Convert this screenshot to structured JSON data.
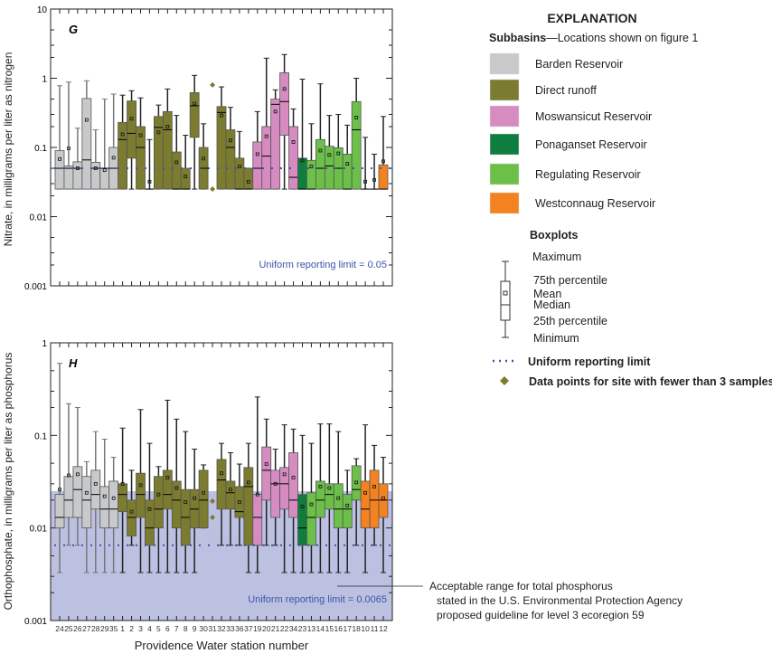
{
  "chart_data": {
    "type": "boxplot",
    "xlabel": "Providence Water station number",
    "stations": [
      "24",
      "25",
      "26",
      "27",
      "28",
      "29",
      "35",
      "1",
      "2",
      "3",
      "4",
      "5",
      "6",
      "7",
      "8",
      "9",
      "30",
      "31",
      "32",
      "33",
      "36",
      "37",
      "19",
      "20",
      "21",
      "22",
      "34",
      "23",
      "13",
      "14",
      "15",
      "16",
      "17",
      "18",
      "10",
      "11",
      "12"
    ],
    "station_groups": [
      "Barden",
      "Barden",
      "Barden",
      "Barden",
      "Barden",
      "Barden",
      "Barden",
      "Direct",
      "Direct",
      "Direct",
      "Direct",
      "Direct",
      "Direct",
      "Direct",
      "Direct",
      "Direct",
      "Direct",
      "Direct",
      "Direct",
      "Direct",
      "Direct",
      "Direct",
      "Moswansicut",
      "Moswansicut",
      "Moswansicut",
      "Moswansicut",
      "Moswansicut",
      "Ponaganset",
      "Regulating",
      "Regulating",
      "Regulating",
      "Regulating",
      "Regulating",
      "Regulating",
      "Westconnaug",
      "Westconnaug",
      "Westconnaug"
    ],
    "group_colors": {
      "Barden": "#c8c9cb",
      "Direct": "#7c7c30",
      "Moswansicut": "#d68cc0",
      "Ponaganset": "#0f7d3e",
      "Regulating": "#6cc04a",
      "Westconnaug": "#f58220"
    },
    "stat_order": [
      "min",
      "q1",
      "median",
      "q3",
      "max",
      "mean"
    ],
    "panels": [
      {
        "label": "G",
        "ylabel": "Nitrate, in milligrams per liter as nitrogen",
        "ylim": [
          0.001,
          10
        ],
        "yticks": [
          "10",
          "1",
          "0.1",
          "0.01",
          "0.001"
        ],
        "reporting_limit": 0.05,
        "reporting_label": "Uniform reporting limit = 0.05",
        "boxes": [
          [
            0.025,
            0.025,
            0.05,
            0.09,
            0.78,
            0.068
          ],
          [
            0.025,
            0.025,
            0.05,
            0.054,
            0.88,
            0.097
          ],
          [
            0.025,
            0.025,
            0.05,
            0.062,
            0.19,
            0.05
          ],
          [
            0.025,
            0.025,
            0.066,
            0.51,
            0.92,
            0.25
          ],
          [
            0.025,
            0.025,
            0.05,
            0.061,
            0.18,
            0.05
          ],
          [
            0.025,
            0.025,
            0.05,
            0.05,
            0.5,
            0.047
          ],
          [
            0.025,
            0.025,
            0.05,
            0.1,
            0.59,
            0.071
          ],
          [
            0.025,
            0.025,
            0.13,
            0.23,
            0.57,
            0.155
          ],
          [
            0.025,
            0.07,
            0.16,
            0.47,
            0.66,
            0.26
          ],
          [
            0.025,
            0.025,
            0.1,
            0.2,
            0.52,
            0.15
          ],
          [
            0.025,
            0.025,
            0.025,
            0.025,
            0.13,
            0.032
          ],
          [
            0.025,
            0.025,
            0.195,
            0.28,
            0.41,
            0.165
          ],
          [
            0.025,
            0.025,
            0.18,
            0.33,
            0.7,
            0.2
          ],
          [
            0.025,
            0.025,
            0.025,
            0.086,
            0.29,
            0.061
          ],
          [
            0.025,
            0.025,
            0.025,
            0.05,
            0.15,
            0.038
          ],
          [
            0.025,
            0.14,
            0.4,
            0.62,
            1.1,
            0.43
          ],
          [
            0.025,
            0.025,
            0.05,
            0.1,
            0.22,
            0.069
          ],
          null,
          [
            0.025,
            0.025,
            0.32,
            0.39,
            0.75,
            0.29
          ],
          [
            0.025,
            0.025,
            0.1,
            0.18,
            0.38,
            0.126
          ],
          [
            0.025,
            0.025,
            0.025,
            0.07,
            0.17,
            0.053
          ],
          [
            0.025,
            0.025,
            0.025,
            0.05,
            0.05,
            0.032
          ],
          [
            0.025,
            0.025,
            0.05,
            0.12,
            0.33,
            0.08
          ],
          [
            0.025,
            0.025,
            0.075,
            0.2,
            1.95,
            0.145
          ],
          [
            0.025,
            0.025,
            0.42,
            0.5,
            0.68,
            0.33
          ],
          [
            0.025,
            0.15,
            0.46,
            1.2,
            2.2,
            0.7
          ],
          [
            0.025,
            0.025,
            0.037,
            0.2,
            0.36,
            0.12
          ],
          [
            0.025,
            0.025,
            0.025,
            0.07,
            0.97,
            0.065
          ],
          [
            0.025,
            0.025,
            0.025,
            0.065,
            0.22,
            0.053
          ],
          [
            0.025,
            0.025,
            0.05,
            0.13,
            0.83,
            0.09
          ],
          [
            0.025,
            0.025,
            0.054,
            0.104,
            0.29,
            0.078
          ],
          [
            0.025,
            0.025,
            0.05,
            0.099,
            0.3,
            0.082
          ],
          [
            0.025,
            0.025,
            0.025,
            0.08,
            0.21,
            0.058
          ],
          [
            0.025,
            0.025,
            0.18,
            0.46,
            1.0,
            0.27
          ],
          [
            0.025,
            0.025,
            0.025,
            0.025,
            0.14,
            0.032
          ],
          [
            0.025,
            0.025,
            0.025,
            0.025,
            0.08,
            0.034
          ],
          [
            0.025,
            0.025,
            0.025,
            0.056,
            0.28,
            0.063
          ]
        ],
        "points": [
          {
            "station": "31",
            "values": [
              0.8,
              0.025
            ]
          }
        ]
      },
      {
        "label": "H",
        "ylabel": "Orthophosphate, in milligrams per liter as phosphorus",
        "ylim": [
          0.001,
          1
        ],
        "yticks": [
          "1",
          "0.1",
          "0.01",
          "0.001"
        ],
        "reporting_limit": 0.0065,
        "reporting_label": "Uniform reporting limit = 0.0065",
        "acceptable_range": [
          0.001,
          0.025
        ],
        "boxes": [
          [
            0.0033,
            0.01,
            0.013,
            0.023,
            0.6,
            0.026
          ],
          [
            0.0065,
            0.013,
            0.02,
            0.036,
            0.22,
            0.037
          ],
          [
            0.0065,
            0.013,
            0.026,
            0.046,
            0.2,
            0.038
          ],
          [
            0.0033,
            0.01,
            0.02,
            0.036,
            0.052,
            0.024
          ],
          [
            0.0033,
            0.016,
            0.023,
            0.042,
            0.11,
            0.03
          ],
          [
            0.0033,
            0.01,
            0.016,
            0.028,
            0.091,
            0.022
          ],
          [
            0.0033,
            0.01,
            0.016,
            0.032,
            0.058,
            0.021
          ],
          [
            0.0033,
            0.015,
            0.023,
            0.03,
            0.12,
            0.03
          ],
          [
            0.0065,
            0.0082,
            0.013,
            0.02,
            0.042,
            0.015
          ],
          [
            0.0033,
            0.013,
            0.023,
            0.039,
            0.19,
            0.029
          ],
          [
            0.0033,
            0.0065,
            0.01,
            0.02,
            0.082,
            0.016
          ],
          [
            0.0033,
            0.01,
            0.016,
            0.036,
            0.046,
            0.023
          ],
          [
            0.0033,
            0.016,
            0.023,
            0.042,
            0.24,
            0.035
          ],
          [
            0.0033,
            0.01,
            0.02,
            0.032,
            0.15,
            0.027
          ],
          [
            0.0033,
            0.0065,
            0.013,
            0.026,
            0.11,
            0.019
          ],
          [
            0.0033,
            0.01,
            0.016,
            0.026,
            0.071,
            0.021
          ],
          [
            0.01,
            0.01,
            0.02,
            0.042,
            0.048,
            0.024
          ],
          null,
          [
            0.0065,
            0.016,
            0.033,
            0.055,
            0.082,
            0.039
          ],
          [
            0.0065,
            0.016,
            0.024,
            0.032,
            0.065,
            0.026
          ],
          [
            0.0065,
            0.013,
            0.015,
            0.028,
            0.049,
            0.019
          ],
          [
            0.0033,
            0.0065,
            0.028,
            0.045,
            0.082,
            0.031
          ],
          [
            0.0033,
            0.0065,
            0.013,
            0.023,
            0.26,
            0.023
          ],
          [
            0.0065,
            0.02,
            0.042,
            0.075,
            0.15,
            0.049
          ],
          [
            0.0065,
            0.013,
            0.03,
            0.042,
            0.071,
            0.03
          ],
          [
            0.0033,
            0.016,
            0.03,
            0.045,
            0.13,
            0.038
          ],
          [
            0.0033,
            0.013,
            0.02,
            0.065,
            0.117,
            0.035
          ],
          [
            0.0033,
            0.0065,
            0.01,
            0.023,
            0.1,
            0.017
          ],
          [
            0.0033,
            0.0065,
            0.013,
            0.024,
            0.082,
            0.018
          ],
          [
            0.0033,
            0.013,
            0.02,
            0.032,
            0.133,
            0.028
          ],
          [
            0.0033,
            0.016,
            0.023,
            0.03,
            0.133,
            0.027
          ],
          [
            0.0033,
            0.01,
            0.016,
            0.03,
            0.11,
            0.021
          ],
          [
            0.0033,
            0.01,
            0.016,
            0.023,
            0.042,
            0.0175
          ],
          [
            0.0065,
            0.02,
            0.026,
            0.047,
            0.056,
            0.031
          ],
          [
            0.0033,
            0.01,
            0.016,
            0.032,
            0.13,
            0.024
          ],
          [
            0.0065,
            0.01,
            0.02,
            0.042,
            0.078,
            0.028
          ],
          [
            0.0033,
            0.013,
            0.02,
            0.03,
            0.058,
            0.021
          ]
        ],
        "points": [
          {
            "station": "31",
            "values": [
              0.0195,
              0.013
            ]
          }
        ]
      }
    ],
    "annotation": [
      "Acceptable range for total phosphorus",
      "stated in the U.S. Environmental Protection Agency",
      "proposed guideline for level 3 ecoregion 59"
    ]
  },
  "legend": {
    "title": "EXPLANATION",
    "subbasins_label": "Subbasins",
    "subbasins_note": "—Locations shown on figure 1",
    "items": [
      {
        "label": "Barden Reservoir",
        "color": "#c8c9cb"
      },
      {
        "label": "Direct runoff",
        "color": "#7c7c30"
      },
      {
        "label": "Moswansicut Reservoir",
        "color": "#d68cc0"
      },
      {
        "label": "Ponaganset Reservoir",
        "color": "#0f7d3e"
      },
      {
        "label": "Regulating Reservoir",
        "color": "#6cc04a"
      },
      {
        "label": "Westconnaug Reservoir",
        "color": "#f58220"
      }
    ],
    "boxplots_title": "Boxplots",
    "box_labels": [
      "Maximum",
      "75th percentile",
      "Mean",
      "Median",
      "25th percentile",
      "Minimum"
    ],
    "reporting_limit_label": "Uniform reporting limit",
    "points_label": "Data points for site with fewer than 3 samples"
  }
}
